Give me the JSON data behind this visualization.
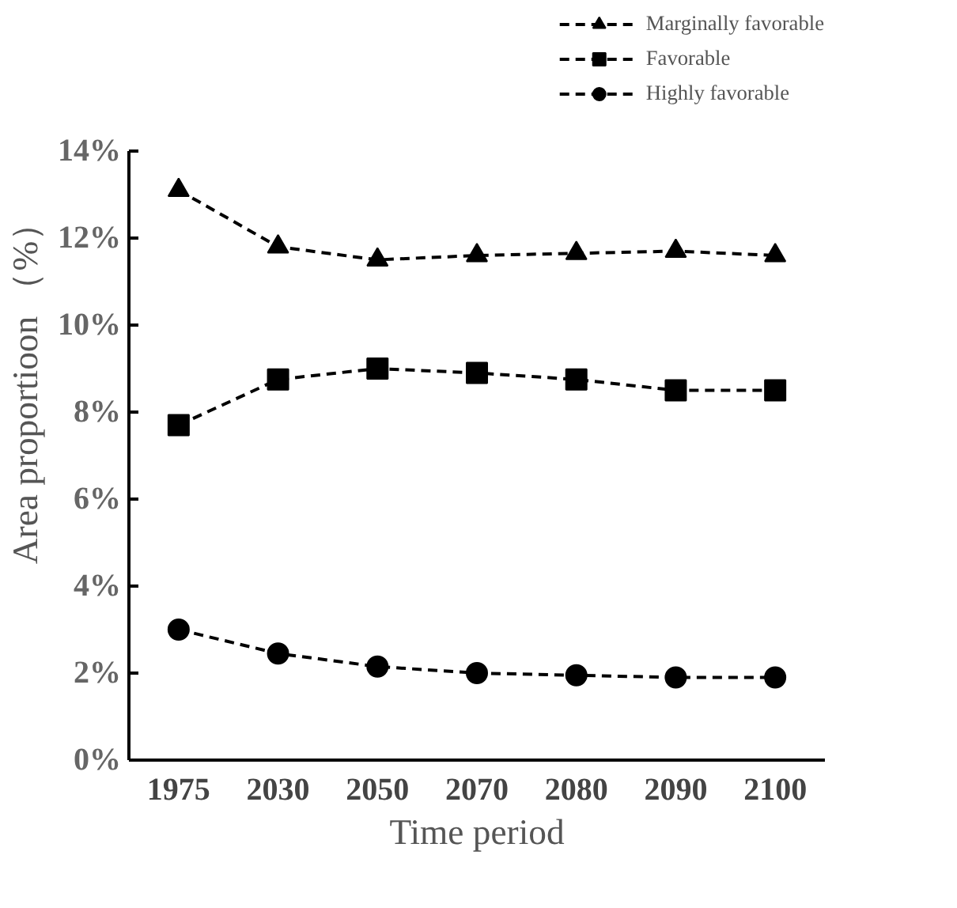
{
  "chart_data": {
    "type": "line",
    "xlabel": "Time period",
    "ylabel": "Area proportioon （%）",
    "categories": [
      "1975",
      "2030",
      "2050",
      "2070",
      "2080",
      "2090",
      "2100"
    ],
    "ylim": [
      0,
      14
    ],
    "yticks": [
      {
        "value": 0,
        "label": "0%"
      },
      {
        "value": 2,
        "label": "2%"
      },
      {
        "value": 4,
        "label": "4%"
      },
      {
        "value": 6,
        "label": "6%"
      },
      {
        "value": 8,
        "label": "8%"
      },
      {
        "value": 10,
        "label": "10%"
      },
      {
        "value": 12,
        "label": "12%"
      },
      {
        "value": 14,
        "label": "14%"
      }
    ],
    "series": [
      {
        "name": "Marginally favorable",
        "color": "#000000",
        "marker": "triangle",
        "values": [
          13.1,
          11.8,
          11.5,
          11.6,
          11.65,
          11.7,
          11.6
        ]
      },
      {
        "name": "Favorable",
        "color": "#000000",
        "marker": "square",
        "values": [
          7.7,
          8.75,
          9.0,
          8.9,
          8.75,
          8.5,
          8.5
        ]
      },
      {
        "name": "Highly favorable",
        "color": "#000000",
        "marker": "circle",
        "values": [
          3.0,
          2.45,
          2.15,
          2.0,
          1.95,
          1.9,
          1.9
        ]
      }
    ],
    "line_style": "dashed",
    "grid": false,
    "legend": "top right"
  }
}
